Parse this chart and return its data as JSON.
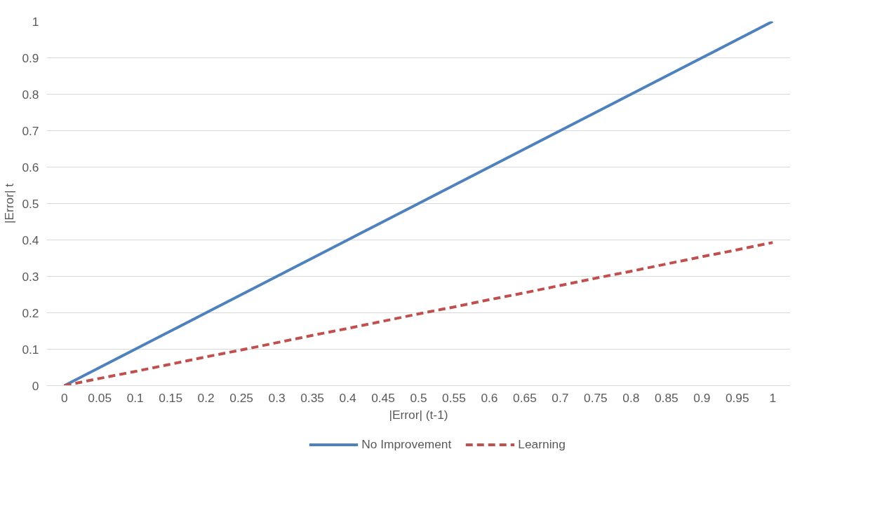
{
  "chart_data": {
    "type": "line",
    "xlabel": "|Error| (t-1)",
    "ylabel": "|Error| t",
    "categories": [
      "0",
      "0.05",
      "0.1",
      "0.15",
      "0.2",
      "0.25",
      "0.3",
      "0.35",
      "0.4",
      "0.45",
      "0.5",
      "0.55",
      "0.6",
      "0.65",
      "0.7",
      "0.75",
      "0.8",
      "0.85",
      "0.9",
      "0.95",
      "1"
    ],
    "series": [
      {
        "name": "No Improvement",
        "color": "#4f81bd",
        "line_style": "solid",
        "values": [
          0,
          0.05,
          0.1,
          0.15,
          0.2,
          0.25,
          0.3,
          0.35,
          0.4,
          0.45,
          0.5,
          0.55,
          0.6,
          0.65,
          0.7,
          0.75,
          0.8,
          0.85,
          0.9,
          0.95,
          1
        ]
      },
      {
        "name": "Learning",
        "color": "#c0504d",
        "line_style": "dashed",
        "values": [
          0,
          0.02,
          0.039,
          0.059,
          0.079,
          0.098,
          0.118,
          0.138,
          0.157,
          0.177,
          0.197,
          0.216,
          0.236,
          0.255,
          0.275,
          0.295,
          0.314,
          0.334,
          0.354,
          0.373,
          0.393
        ]
      }
    ],
    "ylim": [
      0,
      1
    ],
    "yticks": [
      0,
      0.1,
      0.2,
      0.3,
      0.4,
      0.5,
      0.6,
      0.7,
      0.8,
      0.9,
      1
    ],
    "grid": "y",
    "legend": "bottom"
  }
}
